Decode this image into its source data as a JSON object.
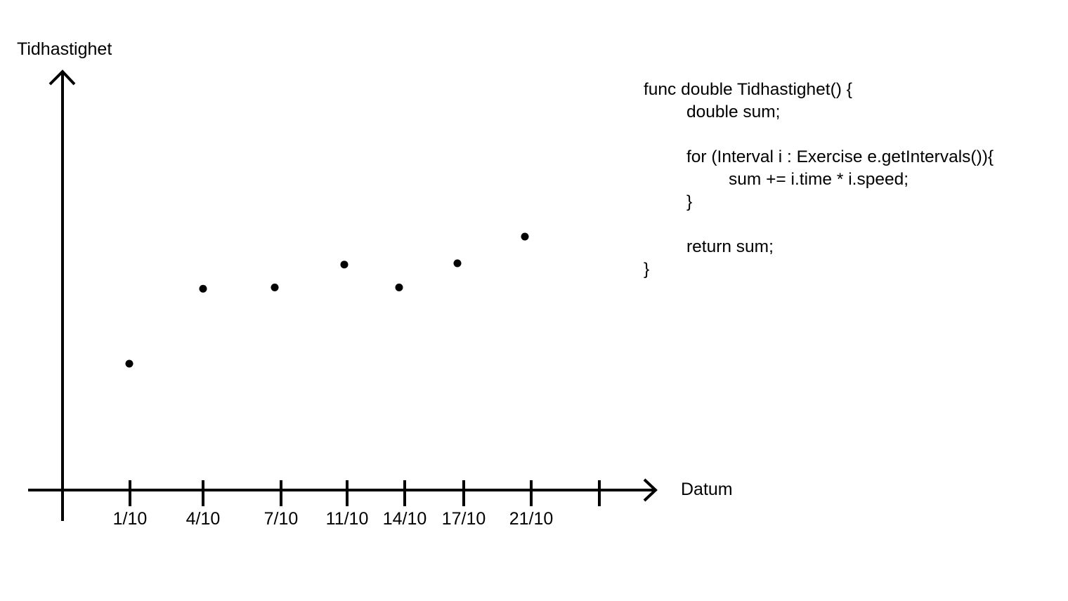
{
  "chart_data": {
    "type": "scatter",
    "ylabel": "Tidhastighet",
    "xlabel": "Datum",
    "x_ticks": [
      "1/10",
      "4/10",
      "7/10",
      "11/10",
      "14/10",
      "17/10",
      "21/10",
      ""
    ],
    "points": [
      {
        "x": "1/10",
        "y": 1.0
      },
      {
        "x": "4/10",
        "y": 1.59
      },
      {
        "x": "7/10",
        "y": 1.6
      },
      {
        "x": "11/10",
        "y": 1.78
      },
      {
        "x": "14/10",
        "y": 1.6
      },
      {
        "x": "17/10",
        "y": 1.79
      },
      {
        "x": "21/10",
        "y": 2.0
      }
    ],
    "grid": false,
    "legend": "none"
  },
  "code": {
    "lines": [
      {
        "text": "func double Tidhastighet() {",
        "indent": 0
      },
      {
        "text": "double sum;",
        "indent": 1
      },
      {
        "text": "",
        "indent": 0
      },
      {
        "text": "for (Interval i : Exercise e.getIntervals()){",
        "indent": 1
      },
      {
        "text": "sum += i.time * i.speed;",
        "indent": 2
      },
      {
        "text": "}",
        "indent": 1
      },
      {
        "text": "",
        "indent": 0
      },
      {
        "text": "return sum;",
        "indent": 1
      },
      {
        "text": "}",
        "indent": 0
      }
    ]
  }
}
